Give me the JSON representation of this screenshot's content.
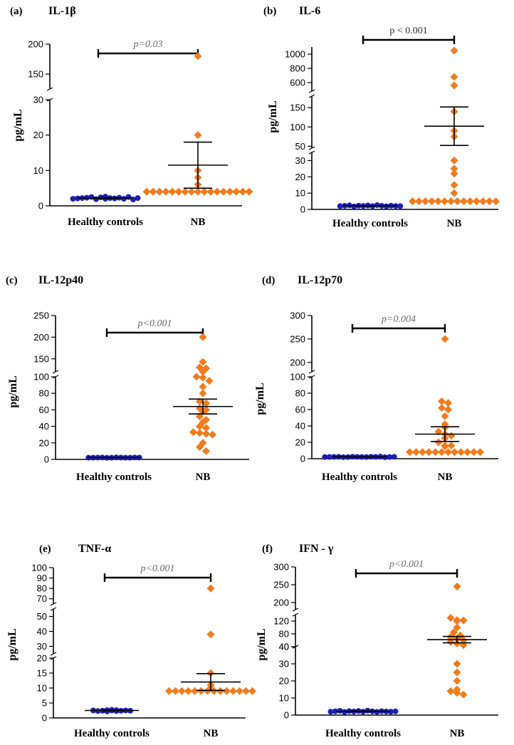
{
  "figure": {
    "ylabel": "pg/mL"
  },
  "chart_data": [
    {
      "id": "a",
      "label": "(a)",
      "title": "IL-1β",
      "type": "scatter",
      "categories": [
        "Healthy controls",
        "NB"
      ],
      "pvalue": "p=0.03",
      "pvalue_italic": true,
      "segments": [
        {
          "range": [
            0,
            30
          ],
          "ticks": [
            0,
            10,
            20,
            30
          ]
        },
        {
          "range": [
            125,
            200
          ],
          "ticks": [
            150,
            200
          ]
        }
      ],
      "series": [
        {
          "name": "Healthy controls",
          "color": "#1f1fb0",
          "shape": "circle",
          "values": [
            2.0,
            2.1,
            2.2,
            2.3,
            2.5,
            1.9,
            2.4,
            2.0,
            2.6,
            2.2,
            2.1,
            2.3,
            2.0,
            2.5,
            1.8,
            2.2
          ],
          "mean": 2.2,
          "sem": 0.1
        },
        {
          "name": "NB",
          "color": "#f07c1e",
          "shape": "diamond",
          "values": [
            180,
            20,
            10,
            8,
            6,
            4,
            4,
            4,
            4,
            4,
            4,
            4,
            4,
            4,
            4,
            4,
            4,
            4,
            4,
            4,
            4,
            4
          ],
          "mean": 11.5,
          "sem": 6.5
        }
      ]
    },
    {
      "id": "b",
      "label": "(b)",
      "title": "IL-6",
      "type": "scatter",
      "categories": [
        "Healthy controls",
        "NB"
      ],
      "pvalue": "p < 0.001",
      "pvalue_italic": false,
      "segments": [
        {
          "range": [
            0,
            35
          ],
          "ticks": [
            0,
            10,
            20,
            30
          ]
        },
        {
          "range": [
            45,
            180
          ],
          "ticks": [
            50,
            100,
            150
          ]
        },
        {
          "range": [
            480,
            1100
          ],
          "ticks": [
            600,
            800,
            1000
          ]
        }
      ],
      "series": [
        {
          "name": "Healthy controls",
          "color": "#1f1fb0",
          "shape": "circle",
          "values": [
            2.0,
            2.2,
            2.5,
            1.8,
            2.3,
            2.1,
            2.4,
            2.0,
            2.6,
            2.2,
            1.9,
            2.3,
            2.1,
            2.0
          ],
          "mean": 2.2,
          "sem": 0.1
        },
        {
          "name": "NB",
          "color": "#f07c1e",
          "shape": "diamond",
          "values": [
            1050,
            680,
            560,
            140,
            90,
            75,
            30,
            25,
            22,
            15,
            10,
            5,
            5,
            5,
            5,
            5,
            5,
            5,
            5,
            5,
            5,
            5,
            5,
            5,
            5
          ],
          "mean": 102,
          "sem": 50
        }
      ]
    },
    {
      "id": "c",
      "label": "(c)",
      "title": "IL-12p40",
      "type": "scatter",
      "categories": [
        "Healthy controls",
        "NB"
      ],
      "pvalue": "p<0.001",
      "pvalue_italic": true,
      "segments": [
        {
          "range": [
            0,
            100
          ],
          "ticks": [
            0,
            20,
            40,
            60,
            80,
            100
          ]
        },
        {
          "range": [
            120,
            250
          ],
          "ticks": [
            150,
            200,
            250
          ]
        }
      ],
      "series": [
        {
          "name": "Healthy controls",
          "color": "#1f1fb0",
          "shape": "circle",
          "values": [
            2.0,
            2.1,
            2.2,
            2.3,
            1.9,
            2.0,
            2.4,
            2.2,
            2.1,
            2.0,
            2.3,
            2.2
          ],
          "mean": 2.2,
          "sem": 0.1
        },
        {
          "name": "NB",
          "color": "#f07c1e",
          "shape": "diamond",
          "values": [
            200,
            130,
            128,
            120,
            118,
            100,
            99,
            95,
            88,
            80,
            70,
            68,
            62,
            60,
            58,
            52,
            48,
            45,
            40,
            38,
            33,
            32,
            31,
            30,
            20,
            15,
            10
          ],
          "mean": 64,
          "sem": 9
        }
      ]
    },
    {
      "id": "d",
      "label": "(d)",
      "title": "IL-12p70",
      "type": "scatter",
      "categories": [
        "Healthy controls",
        "NB"
      ],
      "pvalue": "p=0.004",
      "pvalue_italic": true,
      "segments": [
        {
          "range": [
            0,
            100
          ],
          "ticks": [
            0,
            20,
            40,
            60,
            80,
            100
          ]
        },
        {
          "range": [
            180,
            300
          ],
          "ticks": [
            200,
            250,
            300
          ]
        }
      ],
      "series": [
        {
          "name": "Healthy controls",
          "color": "#1f1fb0",
          "shape": "circle",
          "values": [
            2.0,
            2.1,
            2.2,
            2.3,
            1.9,
            2.0,
            2.4,
            2.2,
            2.1,
            2.0,
            2.3,
            2.2,
            2.5,
            1.8,
            2.1,
            2.2
          ],
          "mean": 2.2,
          "sem": 0.1
        },
        {
          "name": "NB",
          "color": "#f07c1e",
          "shape": "diamond",
          "values": [
            250,
            70,
            68,
            62,
            60,
            52,
            42,
            38,
            33,
            30,
            28,
            25,
            20,
            16,
            16,
            15,
            8,
            8,
            8,
            8,
            8,
            8,
            8,
            8,
            8,
            8,
            8,
            8
          ],
          "mean": 30,
          "sem": 9
        }
      ]
    },
    {
      "id": "e",
      "label": "(e)",
      "title": "TNF-α",
      "type": "scatter",
      "categories": [
        "Healthy controls",
        "NB"
      ],
      "pvalue": "p<0.001",
      "pvalue_italic": true,
      "segments": [
        {
          "range": [
            0,
            20
          ],
          "ticks": [
            0,
            5,
            10,
            15,
            20
          ]
        },
        {
          "range": [
            25,
            55
          ],
          "ticks": [
            30,
            40,
            50
          ]
        },
        {
          "range": [
            65,
            100
          ],
          "ticks": [
            70,
            80,
            90,
            100
          ]
        }
      ],
      "series": [
        {
          "name": "Healthy controls",
          "color": "#1f1fb0",
          "shape": "circle",
          "values": [
            2.5,
            2.3,
            2.6,
            2.4,
            2.2,
            2.7,
            2.5,
            2.3,
            2.4,
            2.6,
            2.5,
            2.4
          ],
          "mean": 2.5,
          "sem": 0.1
        },
        {
          "name": "NB",
          "color": "#f07c1e",
          "shape": "diamond",
          "values": [
            80,
            38,
            15,
            11,
            10,
            9,
            9,
            9,
            9,
            9,
            9,
            9,
            9,
            9,
            9,
            9,
            9,
            9,
            9
          ],
          "mean": 12,
          "sem": 2.8
        }
      ]
    },
    {
      "id": "f",
      "label": "(f)",
      "title": "IFN - γ",
      "type": "scatter",
      "categories": [
        "Healthy controls",
        "NB"
      ],
      "pvalue": "p<0.001",
      "pvalue_italic": true,
      "segments": [
        {
          "range": [
            0,
            40
          ],
          "ticks": [
            0,
            10,
            20,
            30,
            40
          ]
        },
        {
          "range": [
            40,
            140
          ],
          "ticks": [
            40,
            80,
            120
          ]
        },
        {
          "range": [
            180,
            300
          ],
          "ticks": [
            200,
            250,
            300
          ]
        }
      ],
      "series": [
        {
          "name": "Healthy controls",
          "color": "#1f1fb0",
          "shape": "circle",
          "values": [
            2.0,
            2.2,
            2.5,
            1.8,
            2.3,
            2.1,
            2.4,
            2.0,
            2.6,
            2.2,
            1.9,
            2.3,
            2.1,
            2.0,
            2.2
          ],
          "mean": 2.2,
          "sem": 0.1
        },
        {
          "name": "NB",
          "color": "#f07c1e",
          "shape": "diamond",
          "values": [
            245,
            130,
            123,
            122,
            120,
            100,
            85,
            75,
            70,
            65,
            60,
            55,
            50,
            45,
            30,
            25,
            20,
            15,
            14,
            13,
            12
          ],
          "mean": 62,
          "sem": 10
        }
      ]
    }
  ]
}
